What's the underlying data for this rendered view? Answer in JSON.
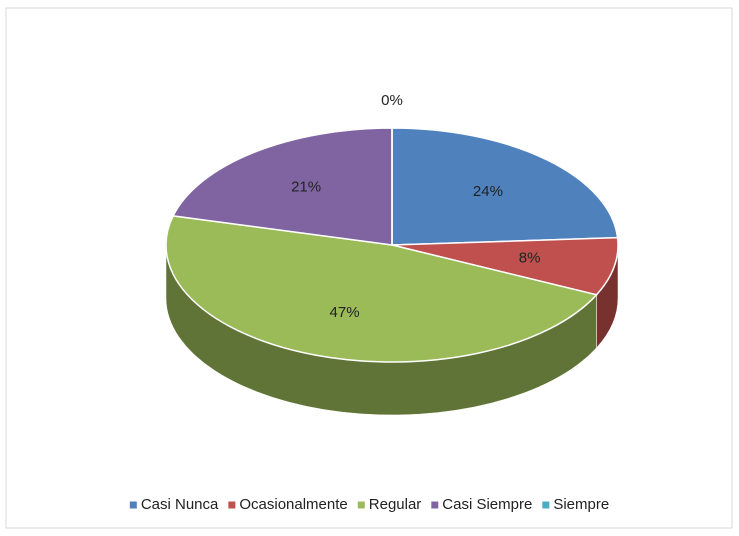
{
  "chart_data": {
    "type": "pie",
    "categories": [
      "Casi Nunca",
      "Ocasionalmente",
      "Regular",
      "Casi Siempre",
      "Siempre"
    ],
    "values": [
      24,
      8,
      47,
      21,
      0
    ],
    "value_labels": [
      "24%",
      "8%",
      "47%",
      "21%",
      "0%"
    ],
    "colors": [
      "#4f81bd",
      "#c0504d",
      "#9bbb59",
      "#8064a2",
      "#4bacc6"
    ],
    "legend": "bottom"
  }
}
